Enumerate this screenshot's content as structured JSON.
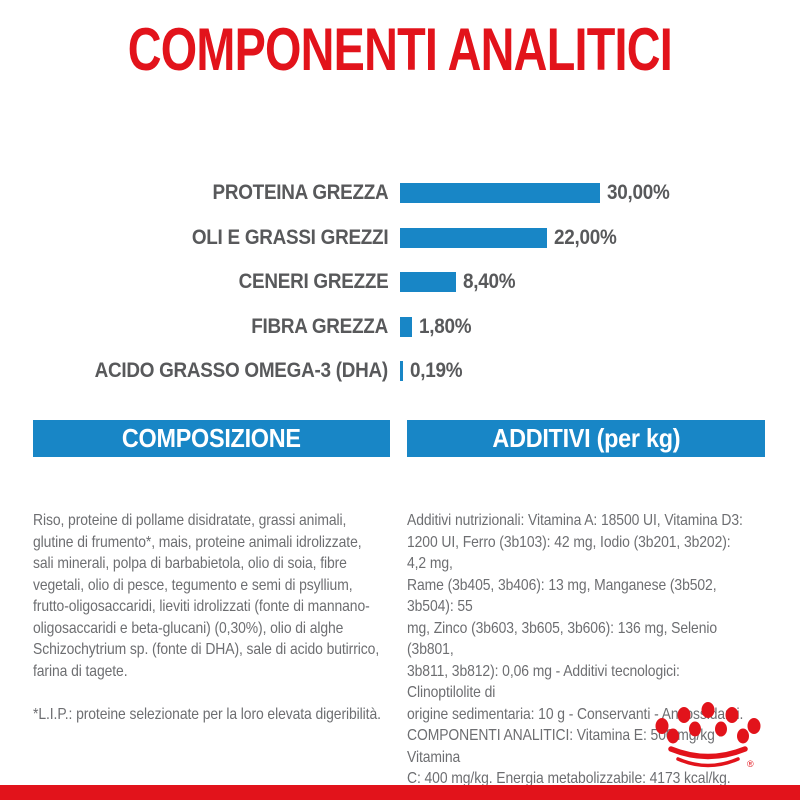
{
  "colors": {
    "brand_red": "#e2131b",
    "brand_blue": "#1886c6",
    "label_gray": "#58595b",
    "body_gray": "#6d6e71",
    "background": "#ffffff"
  },
  "title": "COMPONENTI ANALITICI",
  "chart_data": {
    "type": "bar",
    "orientation": "horizontal",
    "title": "COMPONENTI ANALITICI",
    "categories": [
      "PROTEINA GREZZA",
      "OLI E GRASSI GREZZI",
      "CENERI GREZZE",
      "FIBRA GREZZA",
      "ACIDO GRASSO OMEGA-3 (DHA)"
    ],
    "values": [
      30.0,
      22.0,
      8.4,
      1.8,
      0.19
    ],
    "value_labels": [
      "30,00%",
      "22,00%",
      "8,40%",
      "1,80%",
      "0,19%"
    ],
    "unit": "%",
    "xlim": [
      0,
      30
    ],
    "bar_color": "#1886c6",
    "grid": false,
    "legend": false
  },
  "composizione": {
    "header": "COMPOSIZIONE",
    "body": [
      "Riso, proteine di pollame disidratate, grassi animali,",
      "glutine di frumento*, mais, proteine animali idrolizzate,",
      "sali minerali, polpa di barbabietola, olio di soia, fibre",
      "vegetali, olio di pesce, tegumento e semi di psyllium,",
      "frutto-oligosaccaridi, lieviti idrolizzati (fonte di mannano-",
      "oligosaccaridi e beta-glucani) (0,30%), olio di alghe",
      "Schizochytrium sp. (fonte di DHA), sale di acido butirrico,",
      "farina di tagete."
    ],
    "footnote": "*L.I.P.: proteine selezionate per la loro elevata digeribilità."
  },
  "additivi": {
    "header": "ADDITIVI (per kg)",
    "body": [
      "Additivi nutrizionali: Vitamina A: 18500 UI, Vitamina D3:",
      "1200 UI, Ferro (3b103): 42 mg, Iodio (3b201, 3b202): 4,2 mg,",
      "Rame (3b405, 3b406): 13 mg, Manganese (3b502, 3b504): 55",
      "mg, Zinco (3b603, 3b605, 3b606): 136 mg, Selenio (3b801,",
      "3b811, 3b812): 0,06 mg - Additivi tecnologici: Clinoptilolite di",
      "origine sedimentaria: 10 g - Conservanti - Antiossidanti.",
      "COMPONENTI ANALITICI: Vitamina E: 500 mg/kg - Vitamina",
      "C: 400 mg/kg. Energia metabolizzabile: 4173 kcal/kg."
    ]
  },
  "footer": {
    "logo": "royal-canin-crown",
    "registered_mark": "®"
  }
}
